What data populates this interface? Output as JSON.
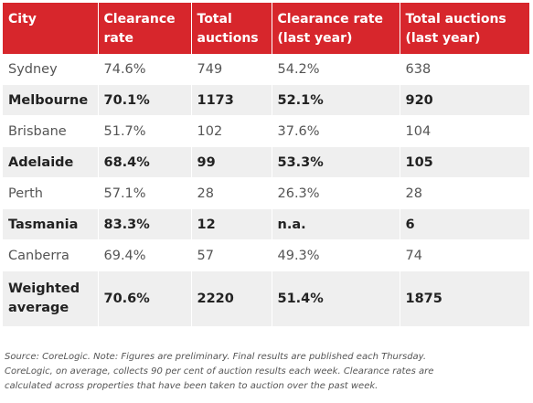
{
  "colors": {
    "header_background": "#d7262c",
    "header_text": "#ffffff",
    "row_shaded": "#efefef"
  },
  "table": {
    "headers": [
      [
        "City"
      ],
      [
        "Clearance",
        "rate"
      ],
      [
        "Total",
        "auctions"
      ],
      [
        "Clearance rate",
        "(last year)"
      ],
      [
        "Total auctions",
        "(last year)"
      ]
    ],
    "rows": [
      [
        "Sydney",
        "74.6%",
        "749",
        "54.2%",
        "638"
      ],
      [
        "Melbourne",
        "70.1%",
        "1173",
        "52.1%",
        "920"
      ],
      [
        "Brisbane",
        "51.7%",
        "102",
        "37.6%",
        "104"
      ],
      [
        "Adelaide",
        "68.4%",
        "99",
        "53.3%",
        "105"
      ],
      [
        "Perth",
        "57.1%",
        "28",
        "26.3%",
        "28"
      ],
      [
        "Tasmania",
        "83.3%",
        "12",
        "n.a.",
        "6"
      ],
      [
        "Canberra",
        "69.4%",
        "57",
        "49.3%",
        "74"
      ],
      [
        "Weighted average",
        "70.6%",
        "2220",
        "51.4%",
        "1875"
      ]
    ]
  },
  "footnote": {
    "lines": [
      "Source: CoreLogic. Note: Figures are preliminary. Final results are published each Thursday.",
      "CoreLogic, on average, collects 90 per cent of auction results each week. Clearance rates are",
      "calculated across properties that have been taken to auction over the past week."
    ]
  }
}
